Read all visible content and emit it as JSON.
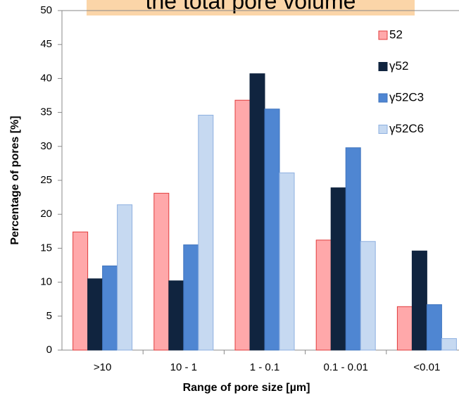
{
  "chart_data": {
    "type": "bar",
    "title": "the total pore volume",
    "x_label": "Range of pore size [µm]",
    "y_label": "Percentage of pores [%]",
    "categories": [
      ">10",
      "10 - 1",
      "1 - 0.1",
      "0.1 - 0.01",
      "<0.01"
    ],
    "series": [
      {
        "name": "52",
        "color": "#ffa8aa",
        "values": [
          17.4,
          23.1,
          36.8,
          16.2,
          6.4
        ]
      },
      {
        "name": "γ52",
        "color": "#10243f",
        "values": [
          10.5,
          10.2,
          40.7,
          23.9,
          14.6
        ]
      },
      {
        "name": "γ52C3",
        "color": "#4f86d2",
        "values": [
          12.4,
          15.5,
          35.5,
          29.8,
          6.7
        ]
      },
      {
        "name": "γ52C6",
        "color": "#c6d9f1",
        "values": [
          21.4,
          34.6,
          26.1,
          16.0,
          1.7
        ]
      }
    ],
    "ylim": [
      0,
      50
    ],
    "yticks": [
      0,
      5,
      10,
      15,
      20,
      25,
      30,
      35,
      40,
      45,
      50
    ],
    "legend": "upper right"
  }
}
